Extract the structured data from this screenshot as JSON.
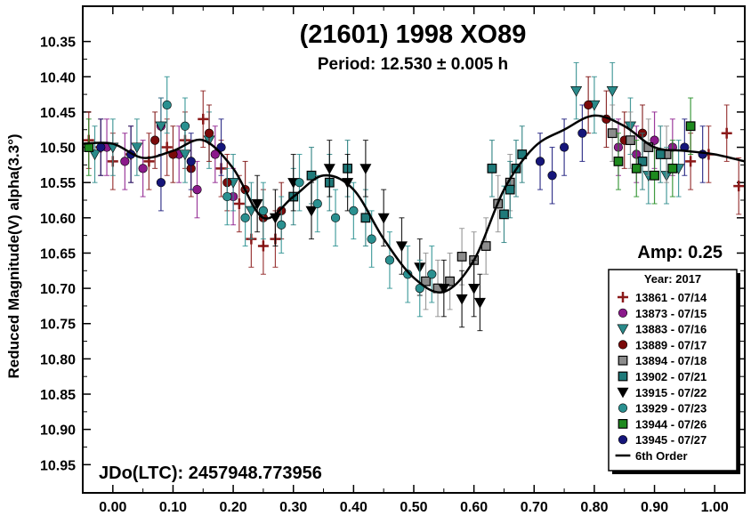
{
  "chart_data": {
    "type": "scatter",
    "title": "(21601) 1998 XO89",
    "subtitle": "Period: 12.530 ± 0.005 h",
    "ylabel": "Reduced Magnitude(V) alpha(3.3°)",
    "xlabel": "",
    "xlim": [
      -0.05,
      1.05
    ],
    "ylim": [
      10.3,
      10.99
    ],
    "y_inverted": true,
    "x_ticks": [
      "0.00",
      "0.10",
      "0.20",
      "0.30",
      "0.40",
      "0.50",
      "0.60",
      "0.70",
      "0.80",
      "0.90",
      "1.00"
    ],
    "y_ticks": [
      "10.35",
      "10.40",
      "10.45",
      "10.50",
      "10.55",
      "10.60",
      "10.65",
      "10.70",
      "10.75",
      "10.80",
      "10.85",
      "10.90",
      "10.95"
    ],
    "amplitude_label": "Amp: 0.25",
    "epoch_label": "JDo(LTC): 2457948.773956",
    "legend": {
      "title": "Year: 2017",
      "position": "bottom-right",
      "entries": [
        {
          "label": "13861 - 07/14",
          "marker": "plus",
          "color": "#8b1a1a"
        },
        {
          "label": "13873 - 07/15",
          "marker": "circle",
          "color": "#8b1a8b"
        },
        {
          "label": "13883 - 07/16",
          "marker": "triangle-down",
          "color": "#2a8a8a"
        },
        {
          "label": "13889 - 07/17",
          "marker": "circle",
          "color": "#7a0a0a"
        },
        {
          "label": "13894 - 07/18",
          "marker": "square",
          "color": "#8c8c8c"
        },
        {
          "label": "13902 - 07/21",
          "marker": "square",
          "color": "#1f7a7a"
        },
        {
          "label": "13915 - 07/22",
          "marker": "triangle-down",
          "color": "#000000"
        },
        {
          "label": "13929 - 07/23",
          "marker": "circle",
          "color": "#2a9090"
        },
        {
          "label": "13944 - 07/26",
          "marker": "square",
          "color": "#1e8a1e"
        },
        {
          "label": "13945 - 07/27",
          "marker": "circle",
          "color": "#16167a"
        },
        {
          "label": "6th Order",
          "marker": "line",
          "color": "#000000"
        }
      ]
    },
    "fit_curve": {
      "name": "6th Order",
      "x": [
        -0.05,
        0.0,
        0.05,
        0.1,
        0.15,
        0.2,
        0.25,
        0.3,
        0.35,
        0.4,
        0.45,
        0.5,
        0.55,
        0.6,
        0.65,
        0.7,
        0.75,
        0.8,
        0.85,
        0.9,
        0.95,
        1.0,
        1.05
      ],
      "y": [
        10.495,
        10.495,
        10.515,
        10.505,
        10.49,
        10.53,
        10.6,
        10.57,
        10.54,
        10.56,
        10.63,
        10.685,
        10.705,
        10.66,
        10.56,
        10.5,
        10.475,
        10.455,
        10.47,
        10.5,
        10.505,
        10.51,
        10.52
      ]
    },
    "series": [
      {
        "name": "13861 - 07/14",
        "marker": "plus",
        "color": "#8b1a1a",
        "x": [
          -0.04,
          -0.02,
          0.0,
          0.03,
          0.06,
          0.09,
          0.12,
          0.15,
          0.18,
          0.21,
          0.23,
          0.25,
          0.27,
          0.96,
          0.99,
          1.02,
          1.04
        ],
        "y": [
          10.49,
          10.5,
          10.52,
          10.51,
          10.52,
          10.5,
          10.49,
          10.46,
          10.53,
          10.58,
          10.63,
          10.64,
          10.63,
          10.52,
          10.51,
          10.48,
          10.555
        ]
      },
      {
        "name": "13873 - 07/15",
        "marker": "circle",
        "color": "#8b1a8b",
        "x": [
          -0.01,
          0.02,
          0.05,
          0.08,
          0.11,
          0.14,
          0.17,
          0.2,
          0.84,
          0.87,
          0.9,
          0.93
        ],
        "y": [
          10.5,
          10.52,
          10.53,
          10.47,
          10.51,
          10.56,
          10.51,
          10.57,
          10.5,
          10.51,
          10.49,
          10.5
        ]
      },
      {
        "name": "13883 - 07/16",
        "marker": "triangle-down",
        "color": "#2a8a8a",
        "x": [
          -0.03,
          0.0,
          0.04,
          0.08,
          0.12,
          0.16,
          0.2,
          0.23,
          0.77,
          0.8,
          0.83,
          0.86,
          0.89,
          0.92,
          0.94
        ],
        "y": [
          10.51,
          10.5,
          10.5,
          10.47,
          10.51,
          10.49,
          10.55,
          10.59,
          10.42,
          10.44,
          10.42,
          10.47,
          10.54,
          10.54,
          10.53
        ]
      },
      {
        "name": "13889 - 07/17",
        "marker": "circle",
        "color": "#7a0a0a",
        "x": [
          0.07,
          0.1,
          0.13,
          0.16,
          0.19,
          0.22,
          0.25,
          0.28,
          0.79,
          0.82,
          0.85,
          0.88
        ],
        "y": [
          10.49,
          10.51,
          10.53,
          10.48,
          10.55,
          10.56,
          10.6,
          10.59,
          10.44,
          10.46,
          10.49,
          10.48
        ]
      },
      {
        "name": "13894 - 07/18",
        "marker": "square",
        "color": "#8c8c8c",
        "x": [
          0.52,
          0.54,
          0.56,
          0.58,
          0.6,
          0.62,
          0.64,
          0.66,
          0.83,
          0.86,
          0.89,
          0.92
        ],
        "y": [
          10.69,
          10.7,
          10.69,
          10.655,
          10.66,
          10.64,
          10.58,
          10.55,
          10.48,
          10.49,
          10.5,
          10.51
        ]
      },
      {
        "name": "13902 - 07/21",
        "marker": "square",
        "color": "#1f7a7a",
        "x": [
          0.3,
          0.33,
          0.36,
          0.39,
          0.42,
          0.63,
          0.65,
          0.66,
          0.67,
          0.68,
          0.88,
          0.91
        ],
        "y": [
          10.57,
          10.54,
          10.55,
          10.53,
          10.6,
          10.53,
          10.595,
          10.56,
          10.53,
          10.51,
          10.52,
          10.51
        ]
      },
      {
        "name": "13915 - 07/22",
        "marker": "triangle-down",
        "color": "#000000",
        "x": [
          0.24,
          0.27,
          0.3,
          0.33,
          0.36,
          0.39,
          0.42,
          0.45,
          0.48,
          0.51,
          0.55,
          0.58,
          0.6,
          0.61
        ],
        "y": [
          10.58,
          10.6,
          10.55,
          10.59,
          10.53,
          10.55,
          10.53,
          10.6,
          10.64,
          10.67,
          10.7,
          10.715,
          10.7,
          10.72
        ]
      },
      {
        "name": "13929 - 07/23",
        "marker": "circle",
        "color": "#2a9090",
        "x": [
          0.19,
          0.22,
          0.25,
          0.28,
          0.31,
          0.34,
          0.37,
          0.4,
          0.43,
          0.46,
          0.49,
          0.51,
          0.53,
          0.09,
          0.12
        ],
        "y": [
          10.57,
          10.6,
          10.59,
          10.61,
          10.55,
          10.58,
          10.6,
          10.59,
          10.63,
          10.66,
          10.68,
          10.7,
          10.68,
          10.44,
          10.47
        ]
      },
      {
        "name": "13944 - 07/26",
        "marker": "square",
        "color": "#1e8a1e",
        "x": [
          -0.04,
          0.84,
          0.87,
          0.9,
          0.93,
          0.96
        ],
        "y": [
          10.5,
          10.52,
          10.53,
          10.54,
          10.53,
          10.47
        ]
      },
      {
        "name": "13945 - 07/27",
        "marker": "circle",
        "color": "#16167a",
        "x": [
          -0.02,
          0.03,
          0.08,
          0.13,
          0.18,
          0.71,
          0.73,
          0.75,
          0.78,
          0.95,
          0.98
        ],
        "y": [
          10.5,
          10.51,
          10.55,
          10.52,
          10.5,
          10.52,
          10.54,
          10.5,
          10.48,
          10.5,
          10.51
        ]
      }
    ],
    "error_bar": 0.04,
    "grid": false
  }
}
